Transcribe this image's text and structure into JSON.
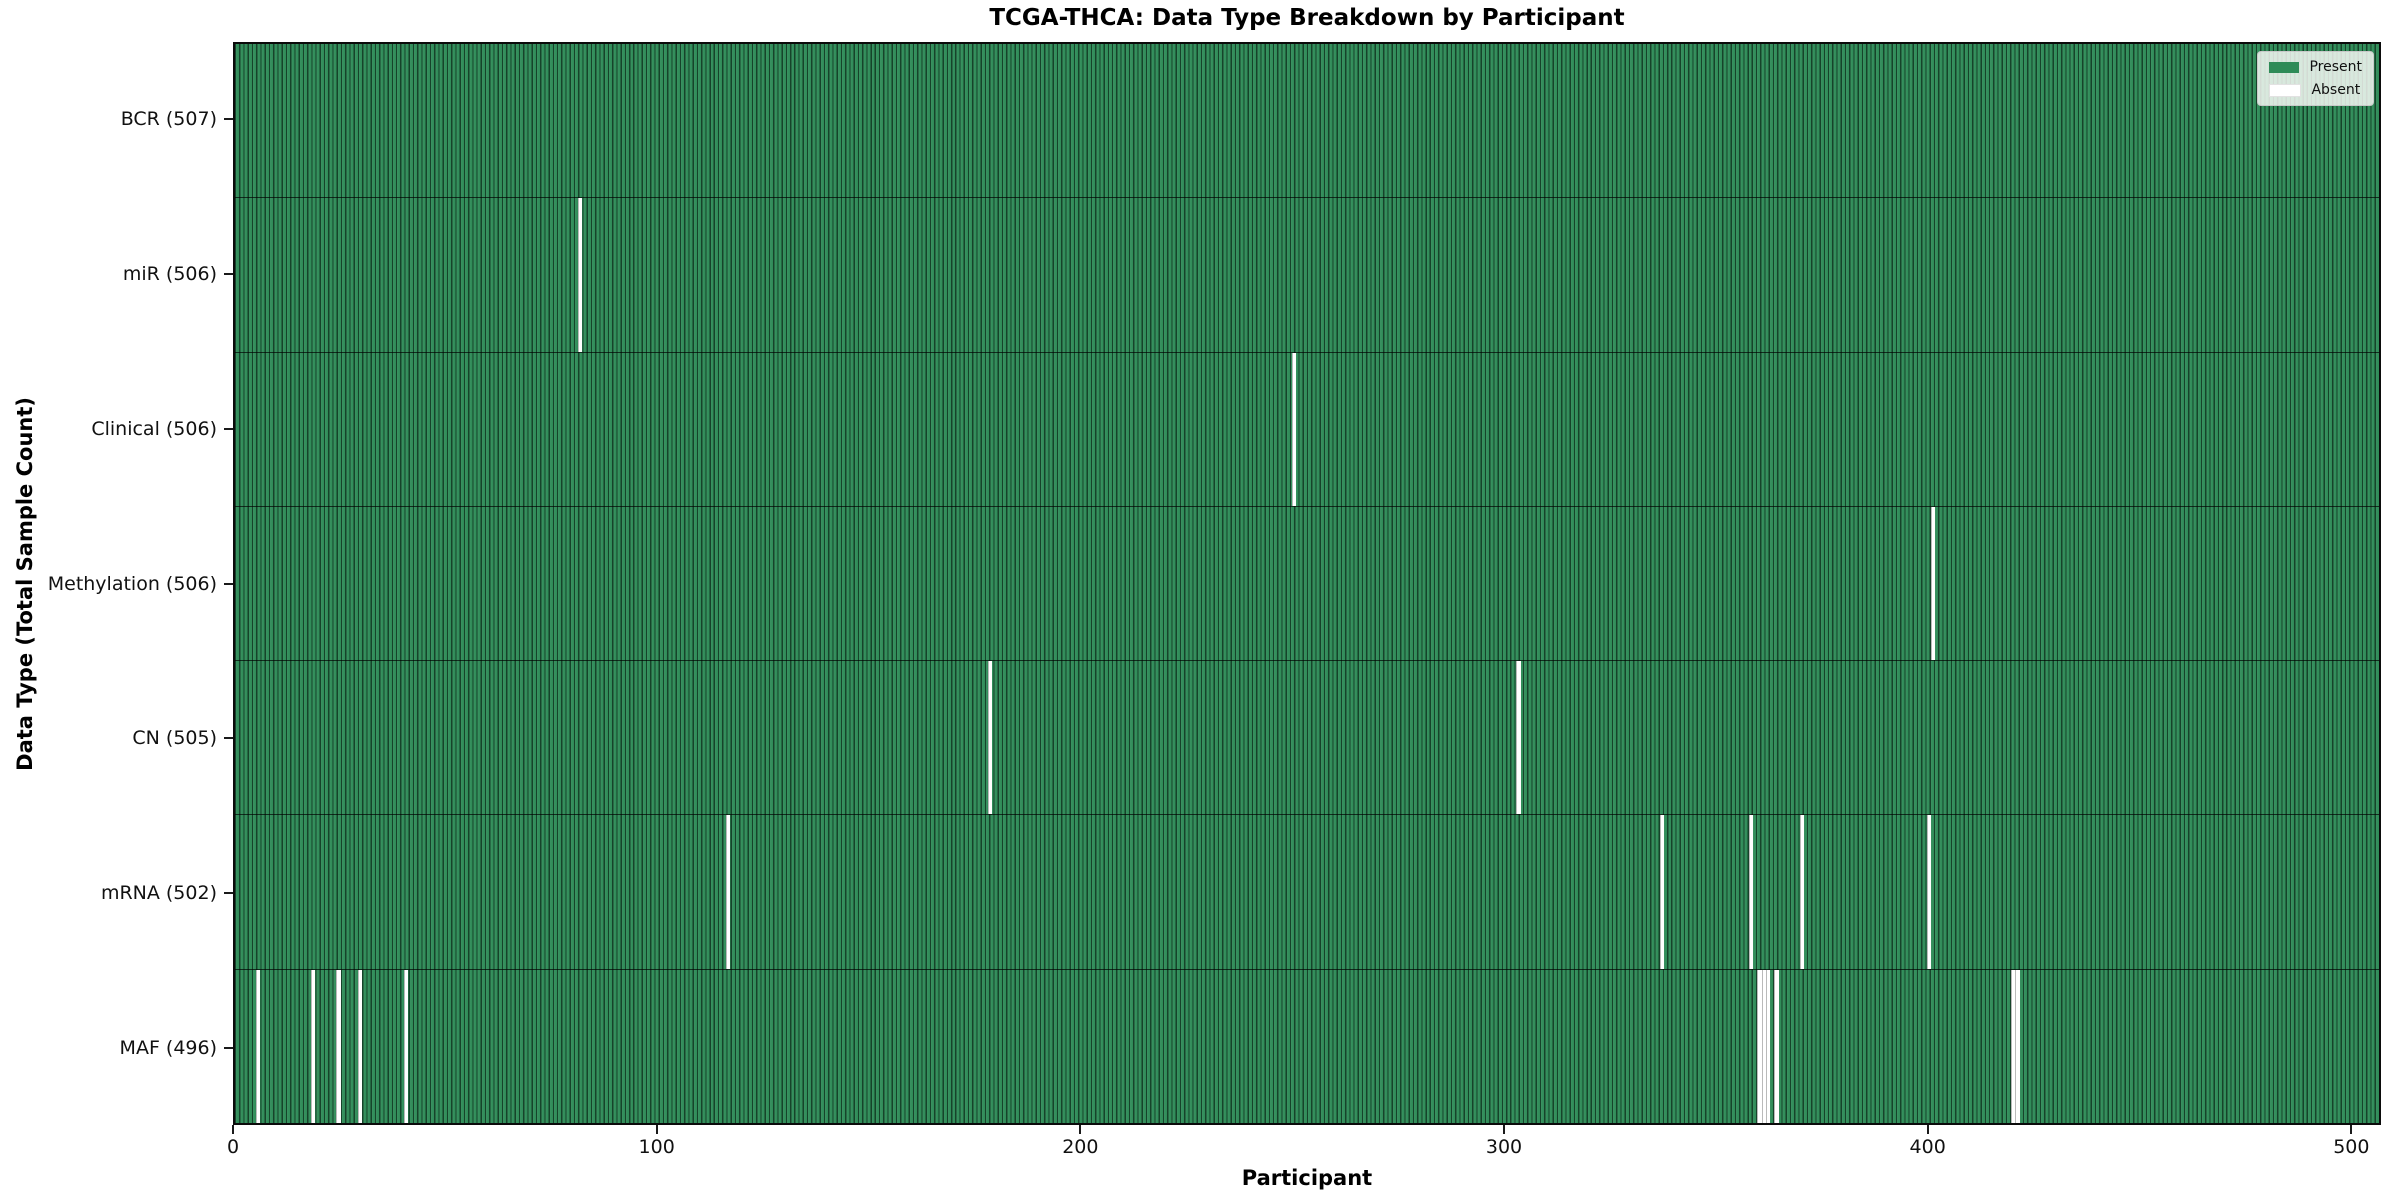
{
  "chart_data": {
    "type": "heatmap",
    "title": "TCGA-THCA: Data Type Breakdown by Participant",
    "xlabel": "Participant",
    "ylabel": "Data Type (Total Sample Count)",
    "n_participants": 507,
    "x_ticks": [
      "0",
      "100",
      "200",
      "300",
      "400",
      "500"
    ],
    "x_tick_values": [
      0,
      100,
      200,
      300,
      400,
      500
    ],
    "grid": false,
    "legend_position": "upper right",
    "colors": {
      "present": "#2e8b57",
      "absent": "#ffffff",
      "cell_edge": "#1b4d30",
      "plot_border": "#0b0b0b"
    },
    "legend": [
      {
        "label": "Present",
        "color": "#2e8b57"
      },
      {
        "label": "Absent",
        "color": "#ffffff"
      }
    ],
    "rows": [
      {
        "key": "bcr",
        "label": "BCR (507)",
        "data_type": "BCR",
        "present_count": 507,
        "absent_participants": []
      },
      {
        "key": "mir",
        "label": "miR (506)",
        "data_type": "miR",
        "present_count": 506,
        "absent_participants": [
          81
        ]
      },
      {
        "key": "clinical",
        "label": "Clinical (506)",
        "data_type": "Clinical",
        "present_count": 506,
        "absent_participants": [
          250
        ]
      },
      {
        "key": "methylation",
        "label": "Methylation (506)",
        "data_type": "Methylation",
        "present_count": 506,
        "absent_participants": [
          401
        ]
      },
      {
        "key": "cn",
        "label": "CN (505)",
        "data_type": "CN",
        "present_count": 505,
        "absent_participants": [
          178,
          303
        ]
      },
      {
        "key": "mrna",
        "label": "mRNA (502)",
        "data_type": "mRNA",
        "present_count": 502,
        "absent_participants": [
          116,
          337,
          358,
          370,
          400
        ]
      },
      {
        "key": "maf",
        "label": "MAF (496)",
        "data_type": "MAF",
        "present_count": 496,
        "absent_participants": [
          5,
          18,
          24,
          29,
          40,
          360,
          361,
          362,
          364,
          420,
          421
        ]
      }
    ]
  }
}
